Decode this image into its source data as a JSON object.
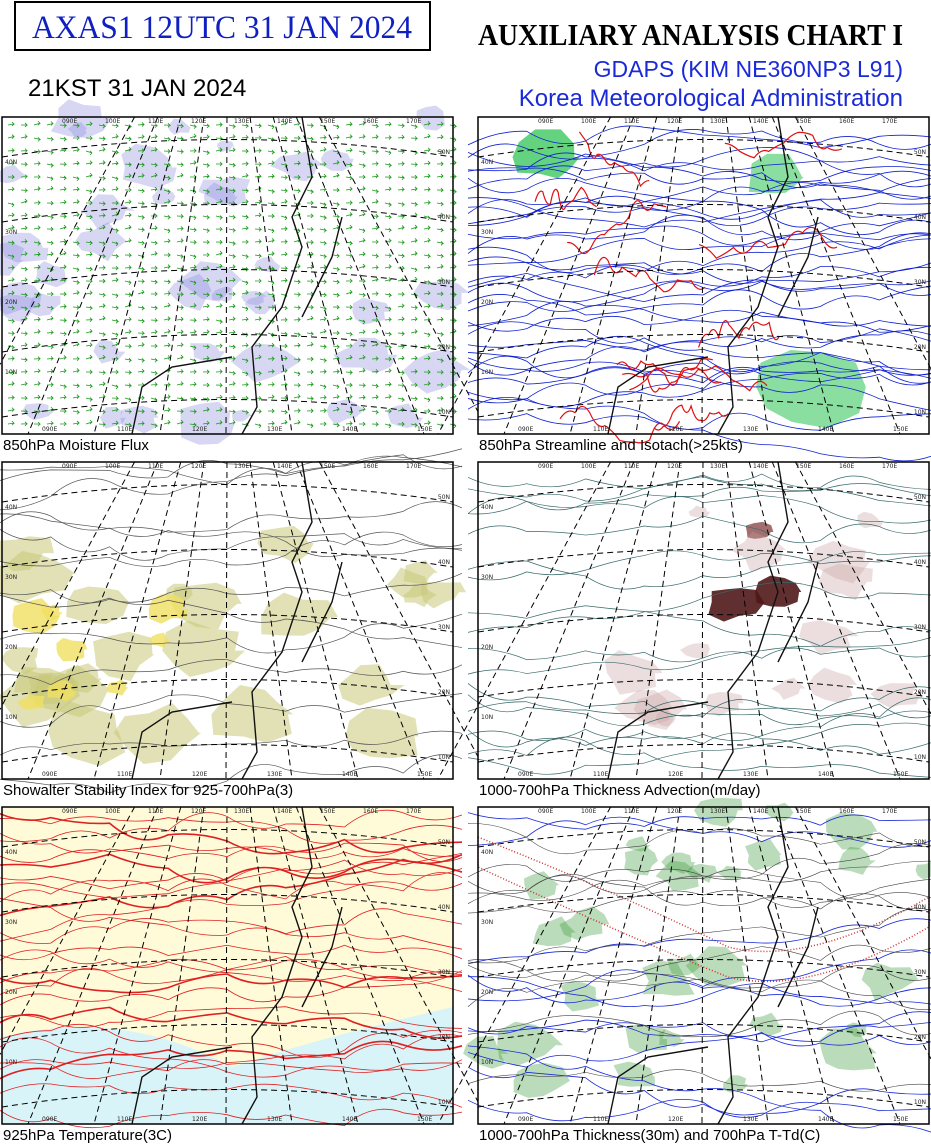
{
  "header": {
    "code": "AXAS1  12UTC 31 JAN 2024",
    "local_time": "21KST 31 JAN 2024",
    "title": "AUXILIARY ANALYSIS CHART  I",
    "model": "GDAPS (KIM NE360NP3 L91)",
    "agency": "Korea Meteorological Administration"
  },
  "map": {
    "lon_top": [
      "090E",
      "100E",
      "110E",
      "120E",
      "130E",
      "140E",
      "150E",
      "160E",
      "170E"
    ],
    "lon_bottom": [
      "090E",
      "110E",
      "120E",
      "130E",
      "140E",
      "150E"
    ],
    "lat_right": [
      "10N",
      "20N",
      "30N",
      "40N",
      "50N"
    ],
    "lat_left": [
      "10N",
      "20N",
      "30N",
      "40N"
    ]
  },
  "panels": [
    {
      "caption": "850hPa Moisture Flux"
    },
    {
      "caption": "850hPa Streamline and Isotach(>25kts)"
    },
    {
      "caption": "Showalter Stability Index for 925-700hPa(3)"
    },
    {
      "caption": "1000-700hPa Thickness Advection(m/day)"
    },
    {
      "caption": "925hPa Temperature(3C)"
    },
    {
      "caption": "1000-700hPa Thickness(30m) and 700hPa T-Td(C)"
    }
  ]
}
